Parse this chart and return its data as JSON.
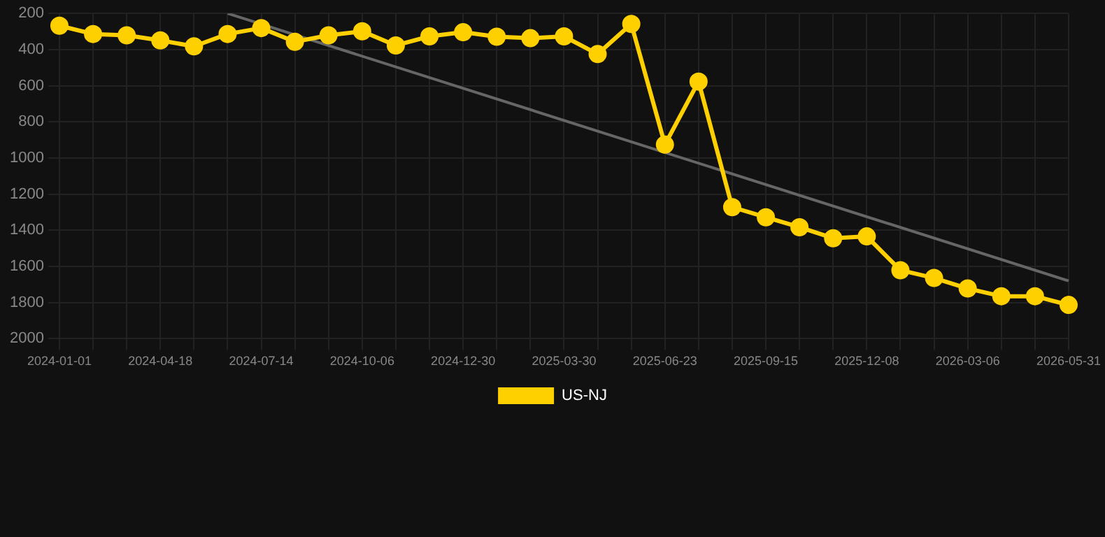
{
  "chart_data": {
    "type": "line",
    "categories": [
      "2024-01-01",
      null,
      null,
      "2024-04-18",
      null,
      null,
      "2024-07-14",
      null,
      null,
      "2024-10-06",
      null,
      null,
      "2024-12-30",
      null,
      null,
      "2025-03-30",
      null,
      null,
      "2025-06-23",
      null,
      null,
      "2025-09-15",
      null,
      null,
      "2025-12-08",
      null,
      null,
      "2026-03-06",
      null,
      null,
      "2026-05-31"
    ],
    "series": [
      {
        "name": "US-NJ",
        "color": "#ffd000",
        "marker": "circle",
        "values": [
          268,
          314,
          321,
          349,
          382,
          314,
          281,
          357,
          321,
          299,
          377,
          327,
          304,
          329,
          337,
          327,
          425,
          258,
          926,
          577,
          1272,
          1328,
          1383,
          1444,
          1434,
          1621,
          1664,
          1722,
          1765,
          1765,
          1813
        ]
      },
      {
        "type": "line",
        "color": "#666666",
        "marker": "none",
        "values": [
          null,
          null,
          null,
          null,
          null,
          200,
          null,
          null,
          null,
          null,
          null,
          null,
          null,
          null,
          null,
          null,
          null,
          null,
          null,
          null,
          null,
          null,
          null,
          null,
          null,
          null,
          null,
          null,
          null,
          null,
          1680
        ]
      }
    ],
    "ylim": [
      2000,
      200
    ],
    "yticks": [
      200,
      400,
      600,
      800,
      1000,
      1200,
      1400,
      1600,
      1800,
      2000
    ],
    "grid": true,
    "legend": "bottom"
  }
}
